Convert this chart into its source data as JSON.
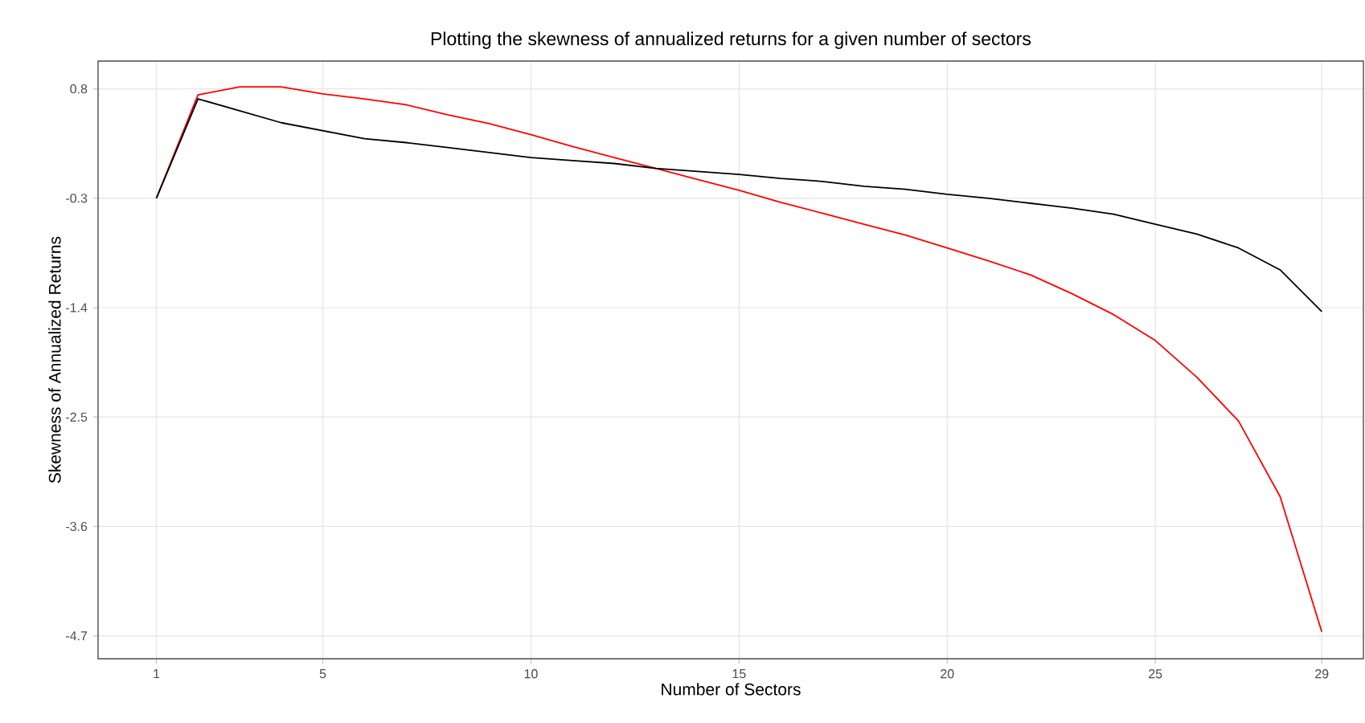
{
  "chart_data": {
    "type": "line",
    "title": "Plotting the skewness of annualized returns for a given number of sectors",
    "xlabel": "Number of Sectors",
    "ylabel": "Skewness of Annualized Returns",
    "x": [
      1,
      2,
      3,
      4,
      5,
      6,
      7,
      8,
      9,
      10,
      11,
      12,
      13,
      14,
      15,
      16,
      17,
      18,
      19,
      20,
      21,
      22,
      23,
      24,
      25,
      26,
      27,
      28,
      29
    ],
    "series": [
      {
        "color": "#ff0000",
        "values": [
          -0.3,
          0.74,
          0.82,
          0.82,
          0.75,
          0.7,
          0.64,
          0.54,
          0.45,
          0.34,
          0.22,
          0.11,
          0.0,
          -0.11,
          -0.22,
          -0.34,
          -0.45,
          -0.56,
          -0.67,
          -0.8,
          -0.93,
          -1.07,
          -1.26,
          -1.47,
          -1.73,
          -2.1,
          -2.54,
          -3.3,
          -4.66
        ]
      },
      {
        "color": "#000000",
        "values": [
          -0.3,
          0.7,
          0.58,
          0.46,
          0.38,
          0.3,
          0.26,
          0.21,
          0.16,
          0.11,
          0.08,
          0.05,
          0.0,
          -0.03,
          -0.06,
          -0.1,
          -0.13,
          -0.18,
          -0.21,
          -0.26,
          -0.3,
          -0.35,
          -0.4,
          -0.46,
          -0.56,
          -0.66,
          -0.8,
          -1.02,
          -1.44
        ]
      }
    ],
    "xlim": [
      -0.4,
      30.0
    ],
    "ylim": [
      -4.93,
      1.08
    ],
    "xticks": [
      1,
      5,
      10,
      15,
      20,
      25,
      29
    ],
    "yticks": [
      0.8,
      -0.3,
      -1.4,
      -2.5,
      -3.6,
      -4.7
    ],
    "grid": true,
    "marker": "none",
    "line_style": "solid"
  }
}
